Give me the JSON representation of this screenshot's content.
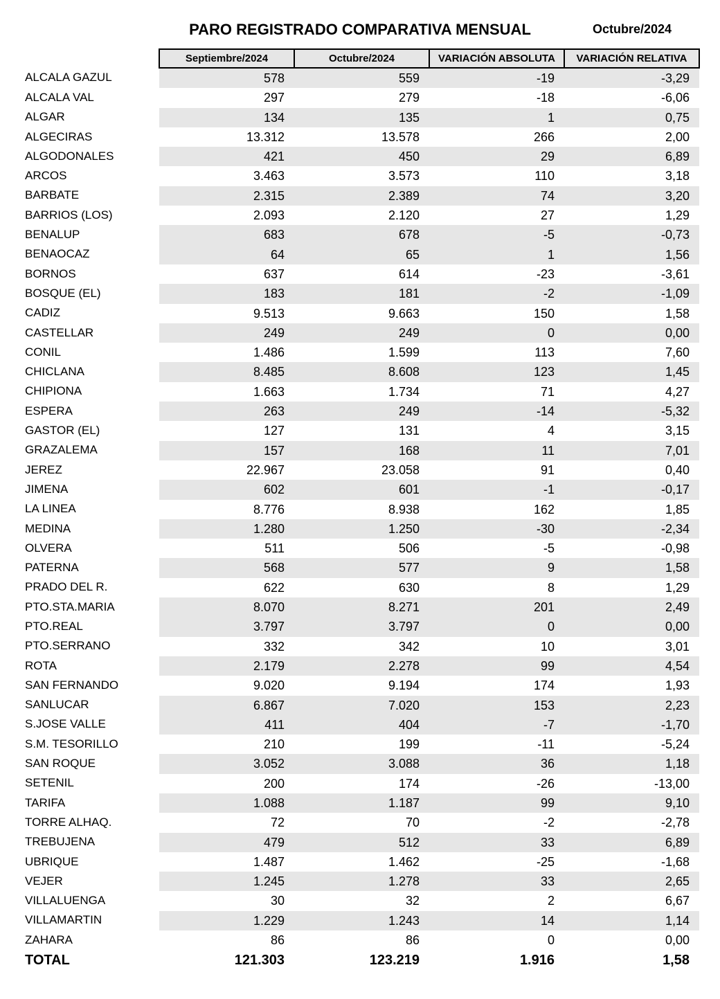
{
  "title": "PARO REGISTRADO COMPARATIVA MENSUAL",
  "period": "Octubre/2024",
  "styling": {
    "background_color": "#ffffff",
    "text_color": "#000000",
    "header_fill": "#e6e6e6",
    "row_shade": "#e6e6e6",
    "border_color": "#000000",
    "title_fontsize_pt": 16,
    "period_fontsize_pt": 13,
    "header_fontsize_pt": 11,
    "body_fontsize_pt": 13,
    "total_fontsize_pt": 15,
    "font_family": "Arial"
  },
  "table": {
    "type": "table",
    "columns": [
      "",
      "Septiembre/2024",
      "Octubre/2024",
      "VARIACIÓN ABSOLUTA",
      "VARIACIÓN RELATIVA"
    ],
    "column_align": [
      "left",
      "right",
      "right",
      "right",
      "right"
    ],
    "rows": [
      {
        "name": "ALCALA GAZUL",
        "sep": "578",
        "oct": "559",
        "abs": "-19",
        "rel": "-3,29",
        "shade": true
      },
      {
        "name": "ALCALA VAL",
        "sep": "297",
        "oct": "279",
        "abs": "-18",
        "rel": "-6,06",
        "shade": false
      },
      {
        "name": "ALGAR",
        "sep": "134",
        "oct": "135",
        "abs": "1",
        "rel": "0,75",
        "shade": true
      },
      {
        "name": "ALGECIRAS",
        "sep": "13.312",
        "oct": "13.578",
        "abs": "266",
        "rel": "2,00",
        "shade": false
      },
      {
        "name": "ALGODONALES",
        "sep": "421",
        "oct": "450",
        "abs": "29",
        "rel": "6,89",
        "shade": true
      },
      {
        "name": "ARCOS",
        "sep": "3.463",
        "oct": "3.573",
        "abs": "110",
        "rel": "3,18",
        "shade": false
      },
      {
        "name": "BARBATE",
        "sep": "2.315",
        "oct": "2.389",
        "abs": "74",
        "rel": "3,20",
        "shade": true
      },
      {
        "name": "BARRIOS (LOS)",
        "sep": "2.093",
        "oct": "2.120",
        "abs": "27",
        "rel": "1,29",
        "shade": false
      },
      {
        "name": "BENALUP",
        "sep": "683",
        "oct": "678",
        "abs": "-5",
        "rel": "-0,73",
        "shade": true
      },
      {
        "name": "BENAOCAZ",
        "sep": "64",
        "oct": "65",
        "abs": "1",
        "rel": "1,56",
        "shade": true
      },
      {
        "name": "BORNOS",
        "sep": "637",
        "oct": "614",
        "abs": "-23",
        "rel": "-3,61",
        "shade": false
      },
      {
        "name": "BOSQUE (EL)",
        "sep": "183",
        "oct": "181",
        "abs": "-2",
        "rel": "-1,09",
        "shade": true
      },
      {
        "name": "CADIZ",
        "sep": "9.513",
        "oct": "9.663",
        "abs": "150",
        "rel": "1,58",
        "shade": false
      },
      {
        "name": "CASTELLAR",
        "sep": "249",
        "oct": "249",
        "abs": "0",
        "rel": "0,00",
        "shade": true
      },
      {
        "name": "CONIL",
        "sep": "1.486",
        "oct": "1.599",
        "abs": "113",
        "rel": "7,60",
        "shade": false
      },
      {
        "name": "CHICLANA",
        "sep": "8.485",
        "oct": "8.608",
        "abs": "123",
        "rel": "1,45",
        "shade": true
      },
      {
        "name": "CHIPIONA",
        "sep": "1.663",
        "oct": "1.734",
        "abs": "71",
        "rel": "4,27",
        "shade": false
      },
      {
        "name": "ESPERA",
        "sep": "263",
        "oct": "249",
        "abs": "-14",
        "rel": "-5,32",
        "shade": true
      },
      {
        "name": "GASTOR (EL)",
        "sep": "127",
        "oct": "131",
        "abs": "4",
        "rel": "3,15",
        "shade": false
      },
      {
        "name": "GRAZALEMA",
        "sep": "157",
        "oct": "168",
        "abs": "11",
        "rel": "7,01",
        "shade": true
      },
      {
        "name": "JEREZ",
        "sep": "22.967",
        "oct": "23.058",
        "abs": "91",
        "rel": "0,40",
        "shade": false
      },
      {
        "name": "JIMENA",
        "sep": "602",
        "oct": "601",
        "abs": "-1",
        "rel": "-0,17",
        "shade": true
      },
      {
        "name": "LA LINEA",
        "sep": "8.776",
        "oct": "8.938",
        "abs": "162",
        "rel": "1,85",
        "shade": false
      },
      {
        "name": "MEDINA",
        "sep": "1.280",
        "oct": "1.250",
        "abs": "-30",
        "rel": "-2,34",
        "shade": true
      },
      {
        "name": "OLVERA",
        "sep": "511",
        "oct": "506",
        "abs": "-5",
        "rel": "-0,98",
        "shade": false
      },
      {
        "name": "PATERNA",
        "sep": "568",
        "oct": "577",
        "abs": "9",
        "rel": "1,58",
        "shade": true
      },
      {
        "name": "PRADO DEL R.",
        "sep": "622",
        "oct": "630",
        "abs": "8",
        "rel": "1,29",
        "shade": false
      },
      {
        "name": "PTO.STA.MARIA",
        "sep": "8.070",
        "oct": "8.271",
        "abs": "201",
        "rel": "2,49",
        "shade": true
      },
      {
        "name": "PTO.REAL",
        "sep": "3.797",
        "oct": "3.797",
        "abs": "0",
        "rel": "0,00",
        "shade": true
      },
      {
        "name": "PTO.SERRANO",
        "sep": "332",
        "oct": "342",
        "abs": "10",
        "rel": "3,01",
        "shade": false
      },
      {
        "name": "ROTA",
        "sep": "2.179",
        "oct": "2.278",
        "abs": "99",
        "rel": "4,54",
        "shade": true
      },
      {
        "name": "SAN FERNANDO",
        "sep": "9.020",
        "oct": "9.194",
        "abs": "174",
        "rel": "1,93",
        "shade": false
      },
      {
        "name": "SANLUCAR",
        "sep": "6.867",
        "oct": "7.020",
        "abs": "153",
        "rel": "2,23",
        "shade": true
      },
      {
        "name": "S.JOSE VALLE",
        "sep": "411",
        "oct": "404",
        "abs": "-7",
        "rel": "-1,70",
        "shade": true
      },
      {
        "name": "S.M. TESORILLO",
        "sep": "210",
        "oct": "199",
        "abs": "-11",
        "rel": "-5,24",
        "shade": false
      },
      {
        "name": "SAN ROQUE",
        "sep": "3.052",
        "oct": "3.088",
        "abs": "36",
        "rel": "1,18",
        "shade": true
      },
      {
        "name": "SETENIL",
        "sep": "200",
        "oct": "174",
        "abs": "-26",
        "rel": "-13,00",
        "shade": false
      },
      {
        "name": "TARIFA",
        "sep": "1.088",
        "oct": "1.187",
        "abs": "99",
        "rel": "9,10",
        "shade": true
      },
      {
        "name": "TORRE ALHAQ.",
        "sep": "72",
        "oct": "70",
        "abs": "-2",
        "rel": "-2,78",
        "shade": false
      },
      {
        "name": "TREBUJENA",
        "sep": "479",
        "oct": "512",
        "abs": "33",
        "rel": "6,89",
        "shade": true
      },
      {
        "name": "UBRIQUE",
        "sep": "1.487",
        "oct": "1.462",
        "abs": "-25",
        "rel": "-1,68",
        "shade": false
      },
      {
        "name": "VEJER",
        "sep": "1.245",
        "oct": "1.278",
        "abs": "33",
        "rel": "2,65",
        "shade": true
      },
      {
        "name": "VILLALUENGA",
        "sep": "30",
        "oct": "32",
        "abs": "2",
        "rel": "6,67",
        "shade": false
      },
      {
        "name": "VILLAMARTIN",
        "sep": "1.229",
        "oct": "1.243",
        "abs": "14",
        "rel": "1,14",
        "shade": true
      },
      {
        "name": "ZAHARA",
        "sep": "86",
        "oct": "86",
        "abs": "0",
        "rel": "0,00",
        "shade": false
      }
    ],
    "total": {
      "name": "TOTAL",
      "sep": "121.303",
      "oct": "123.219",
      "abs": "1.916",
      "rel": "1,58"
    }
  }
}
